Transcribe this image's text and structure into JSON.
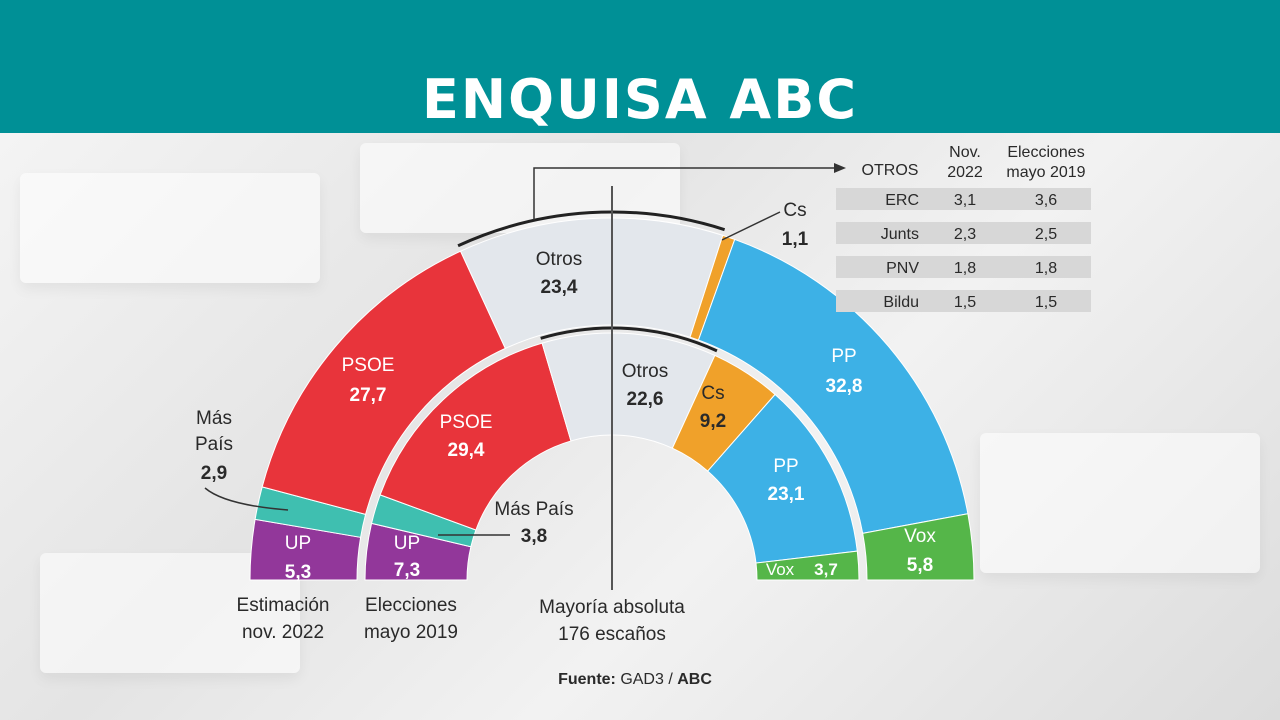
{
  "header": {
    "title": "ENQUISA ABC"
  },
  "colors": {
    "banner": "#009096",
    "PSOE": "#e8343b",
    "Otros": "#e3e7ec",
    "Cs": "#f0a12a",
    "PP": "#3db1e6",
    "Vox": "#55b649",
    "UP": "#92379a",
    "Más País": "#3fbfb0"
  },
  "chart_data": {
    "type": "pie",
    "subtype": "parliament-semicircle",
    "series": [
      {
        "name": "Estimación nov. 2022",
        "segments": [
          {
            "party": "UP",
            "value": 5.3
          },
          {
            "party": "Más País",
            "value": 2.9
          },
          {
            "party": "PSOE",
            "value": 27.7
          },
          {
            "party": "Otros",
            "value": 23.4
          },
          {
            "party": "Cs",
            "value": 1.1
          },
          {
            "party": "PP",
            "value": 32.8
          },
          {
            "party": "Vox",
            "value": 5.8
          }
        ]
      },
      {
        "name": "Elecciones mayo 2019",
        "segments": [
          {
            "party": "UP",
            "value": 7.3
          },
          {
            "party": "Más País",
            "value": 3.8
          },
          {
            "party": "PSOE",
            "value": 29.4
          },
          {
            "party": "Otros",
            "value": 22.6
          },
          {
            "party": "Cs",
            "value": 9.2
          },
          {
            "party": "PP",
            "value": 23.1
          },
          {
            "party": "Vox",
            "value": 3.7
          }
        ]
      }
    ],
    "labels": {
      "outer": {
        "UP": {
          "name": "UP",
          "value": "5,3"
        },
        "Más País": {
          "name1": "Más",
          "name2": "País",
          "value": "2,9"
        },
        "PSOE": {
          "name": "PSOE",
          "value": "27,7"
        },
        "Otros": {
          "name": "Otros",
          "value": "23,4"
        },
        "Cs": {
          "name": "Cs",
          "value": "1,1"
        },
        "PP": {
          "name": "PP",
          "value": "32,8"
        },
        "Vox": {
          "name": "Vox",
          "value": "5,8"
        }
      },
      "inner": {
        "UP": {
          "name": "UP",
          "value": "7,3"
        },
        "Más País": {
          "name": "Más País",
          "value": "3,8"
        },
        "PSOE": {
          "name": "PSOE",
          "value": "29,4"
        },
        "Otros": {
          "name": "Otros",
          "value": "22,6"
        },
        "Cs": {
          "name": "Cs",
          "value": "9,2"
        },
        "PP": {
          "name": "PP",
          "value": "23,1"
        },
        "Vox": {
          "name": "Vox",
          "value": "3,7"
        }
      }
    },
    "ring_captions": {
      "outer": [
        "Estimación",
        "nov. 2022"
      ],
      "inner": [
        "Elecciones",
        "mayo 2019"
      ]
    },
    "majority": [
      "Mayoría absoluta",
      "176 escaños"
    ],
    "source": {
      "label": "Fuente:",
      "text": "GAD3 /",
      "brand": "ABC"
    },
    "others_table": {
      "title": "OTROS",
      "columns": [
        [
          "Nov.",
          "2022"
        ],
        [
          "Elecciones",
          "mayo 2019"
        ]
      ],
      "rows": [
        {
          "party": "ERC",
          "nov_2022": "3,1",
          "may_2019": "3,6"
        },
        {
          "party": "Junts",
          "nov_2022": "2,3",
          "may_2019": "2,5"
        },
        {
          "party": "PNV",
          "nov_2022": "1,8",
          "may_2019": "1,8"
        },
        {
          "party": "Bildu",
          "nov_2022": "1,5",
          "may_2019": "1,5"
        }
      ]
    }
  }
}
